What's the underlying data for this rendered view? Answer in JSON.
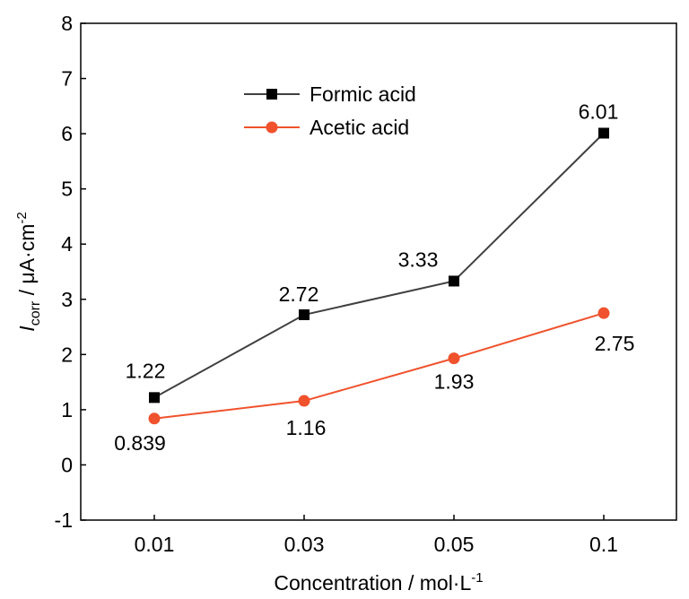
{
  "chart_data": {
    "type": "line",
    "categories": [
      "0.01",
      "0.03",
      "0.05",
      "0.1"
    ],
    "xlabel": {
      "main": "Concentration / mol·L",
      "sup": "-1"
    },
    "ylabel": {
      "symbol": "I",
      "sub": "corr",
      "unit": " / μA·cm",
      "sup": "-2"
    },
    "ylim": [
      -1,
      8
    ],
    "yticks": [
      "-1",
      "0",
      "1",
      "2",
      "3",
      "4",
      "5",
      "6",
      "7",
      "8"
    ],
    "grid": false,
    "legend": {
      "placement": "top-left"
    },
    "series": [
      {
        "name": "Formic acid",
        "marker": "square",
        "color": "#404040",
        "markerColor": "#000000",
        "values": [
          1.22,
          2.72,
          3.33,
          6.01
        ],
        "labels": [
          "1.22",
          "2.72",
          "3.33",
          "6.01"
        ]
      },
      {
        "name": "Acetic acid",
        "marker": "circle",
        "color": "#f0522d",
        "markerColor": "#f0522d",
        "values": [
          0.839,
          1.16,
          1.93,
          2.75
        ],
        "labels": [
          "0.839",
          "1.16",
          "1.93",
          "2.75"
        ]
      }
    ]
  }
}
